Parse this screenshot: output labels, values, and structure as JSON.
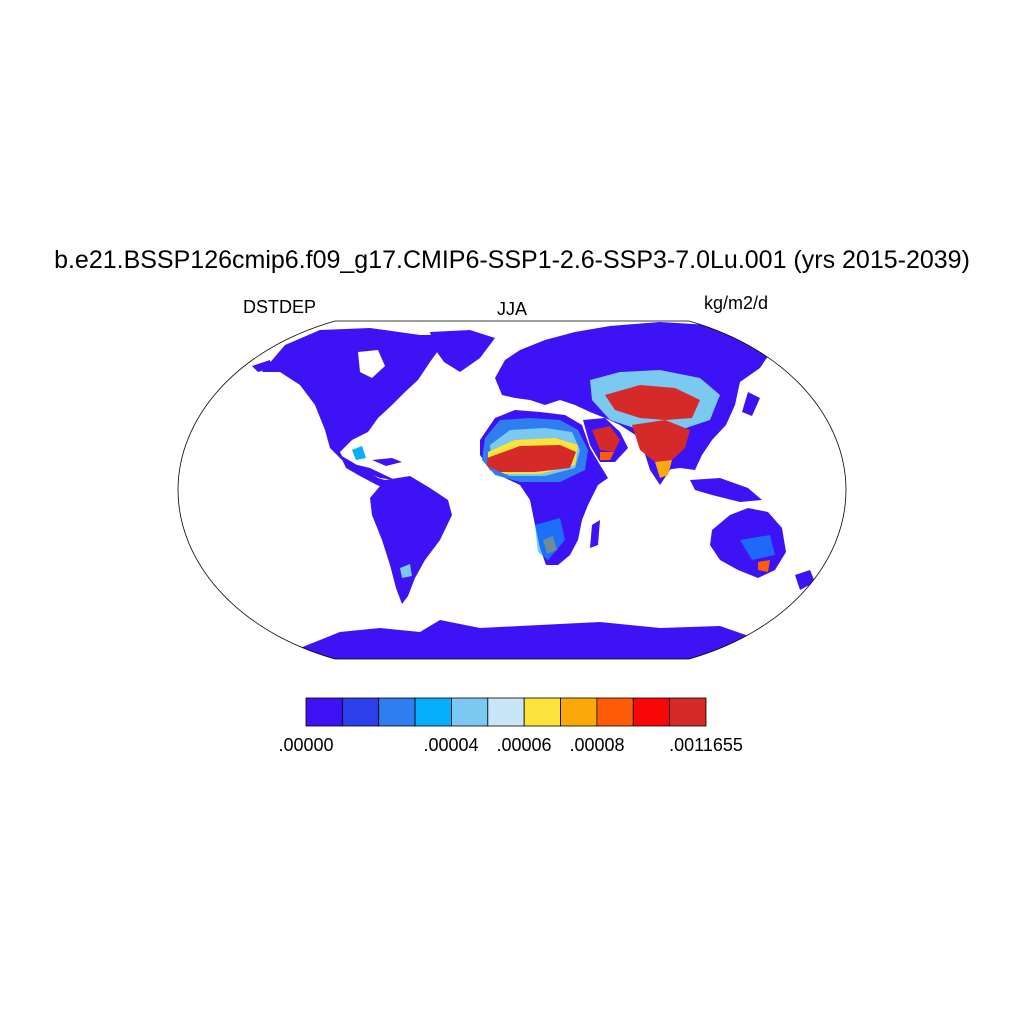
{
  "title": "b.e21.BSSP126cmip6.f09_g17.CMIP6-SSP1-2.6-SSP3-7.0Lu.001 (yrs 2015-2039)",
  "left_label": "DSTDEP",
  "center_label": "JJA",
  "right_label": "kg/m2/d",
  "colorbar": {
    "colors": [
      "#3d12f5",
      "#2d3fe8",
      "#2e7ef0",
      "#07aefc",
      "#7bc8f0",
      "#c8e6f8",
      "#fce33c",
      "#fca80a",
      "#fc5c05",
      "#f70707",
      "#d6292a"
    ],
    "tick_labels": [
      ".00000",
      ".00004",
      ".00006",
      ".00008",
      ".0011655"
    ]
  },
  "map": {
    "projection": "Robinson",
    "land_fill_base": "#3d12f5"
  }
}
